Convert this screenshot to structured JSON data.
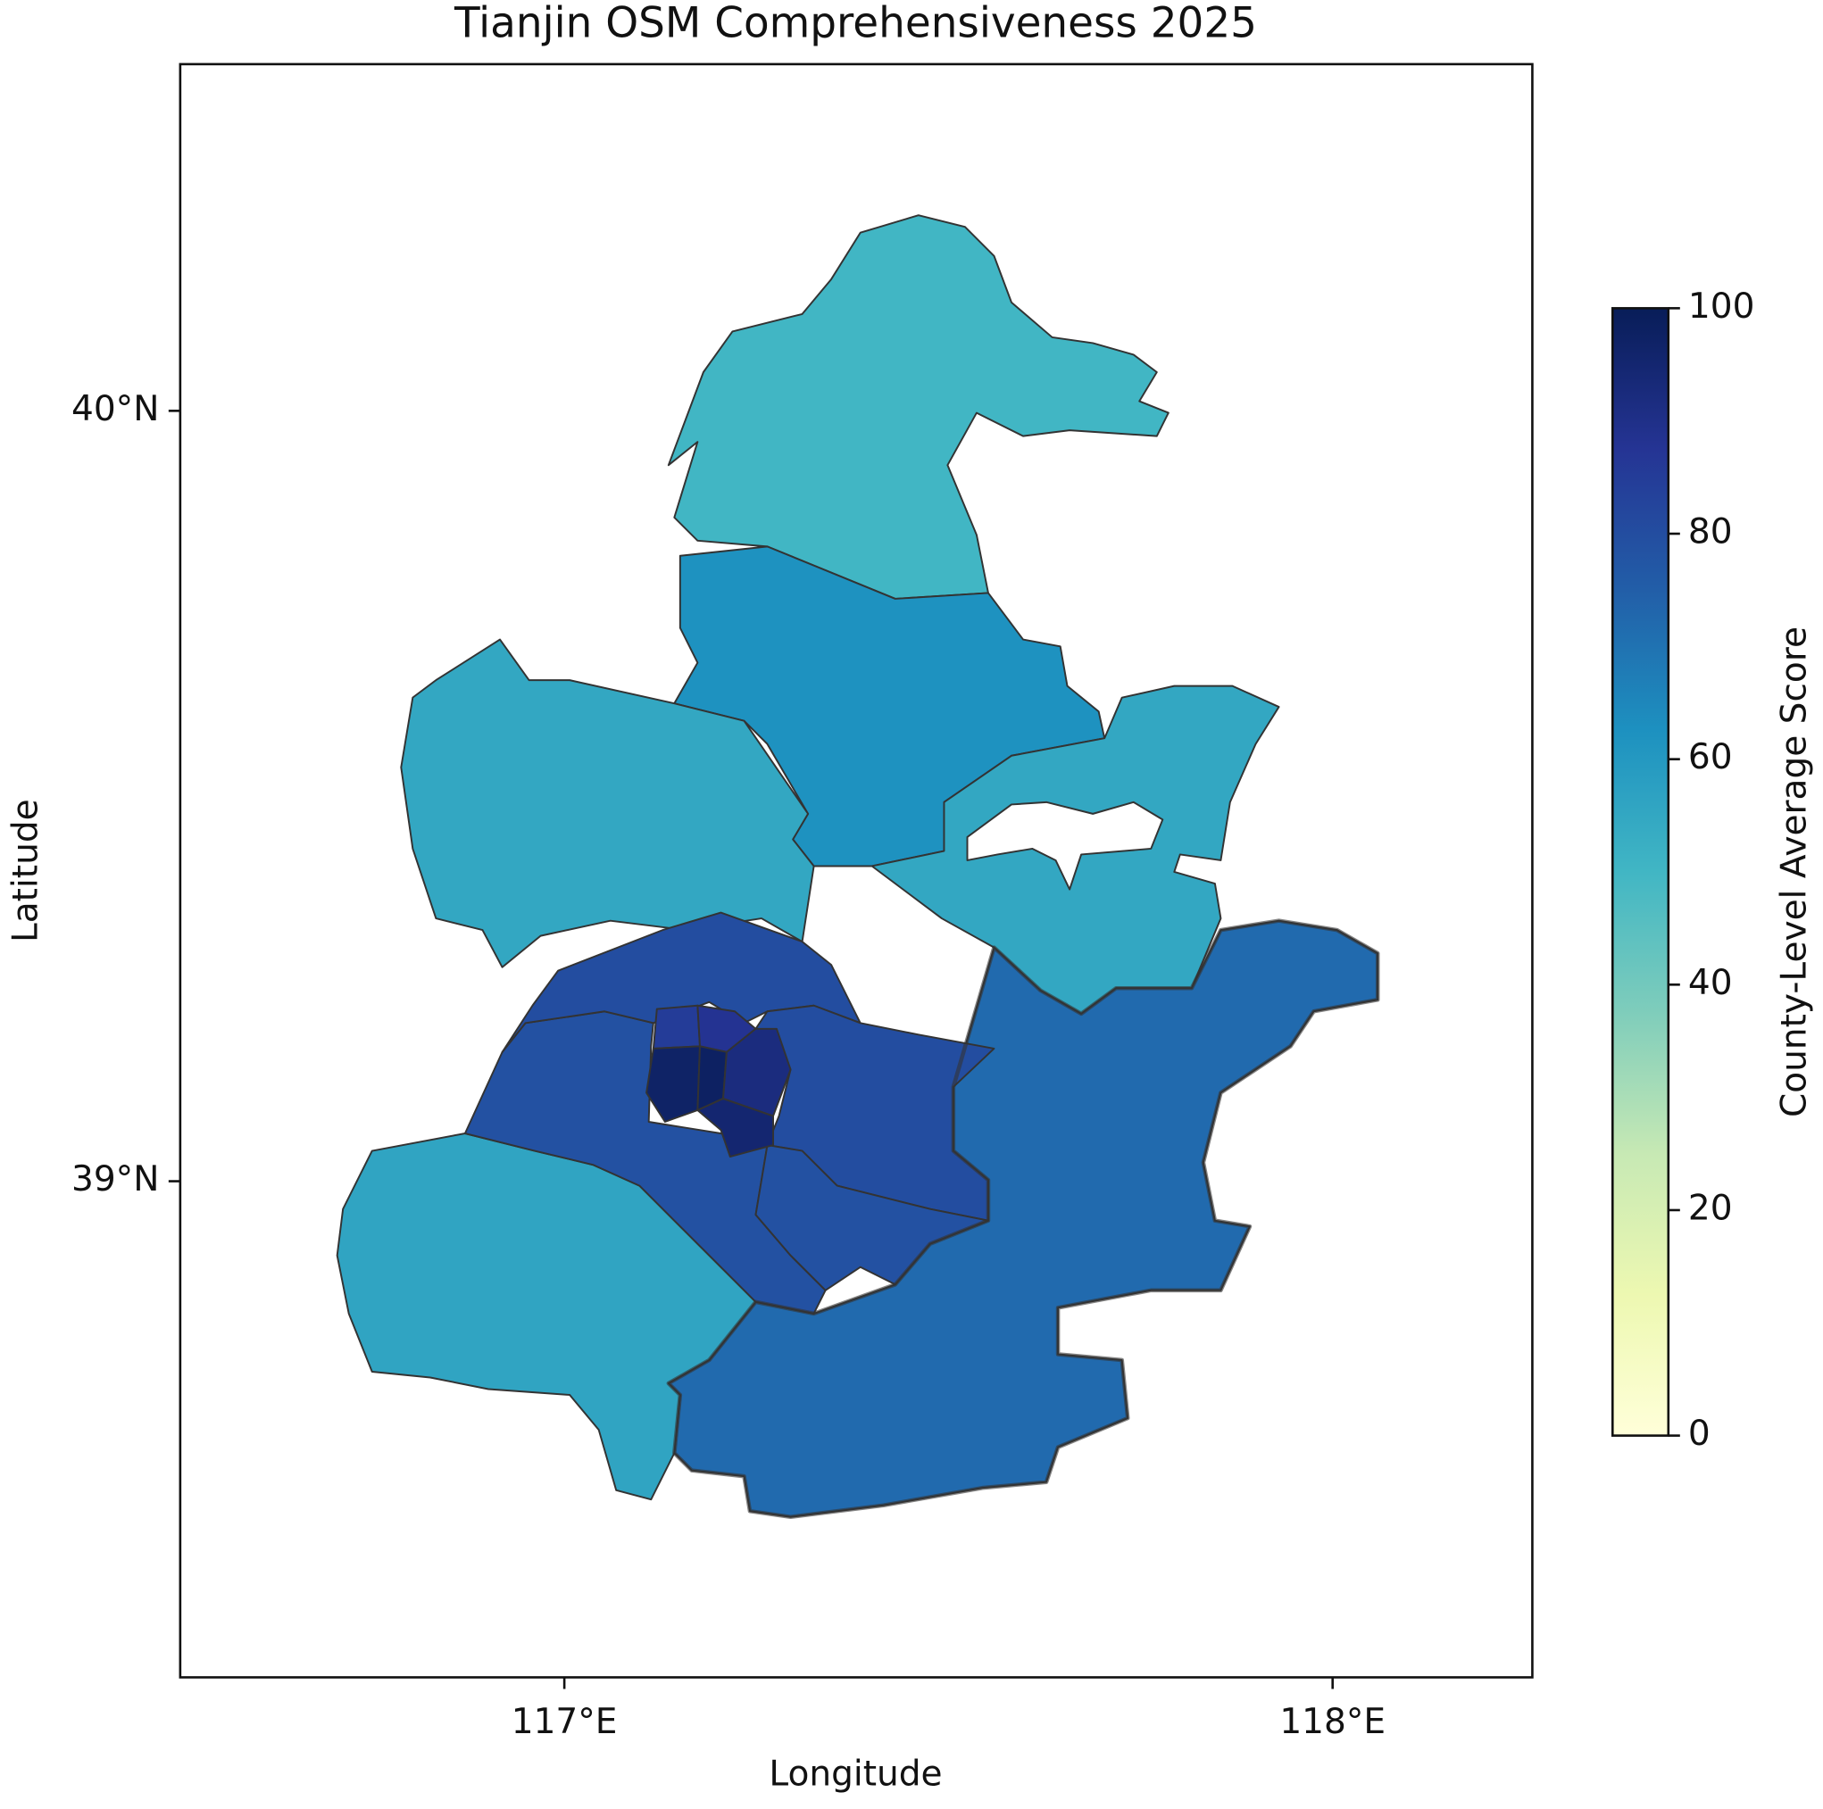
{
  "chart_data": {
    "type": "choropleth",
    "title": "Tianjin OSM Comprehensiveness 2025",
    "xlabel": "Longitude",
    "ylabel": "Latitude",
    "xlim": [
      116.5,
      118.26
    ],
    "ylim": [
      38.356,
      40.45
    ],
    "xticks": [
      {
        "value": 117,
        "label": "117°E"
      },
      {
        "value": 118,
        "label": "118°E"
      }
    ],
    "yticks": [
      {
        "value": 39,
        "label": "39°N"
      },
      {
        "value": 40,
        "label": "40°N"
      }
    ],
    "colormap": "YlGnBu",
    "clim": [
      0,
      100
    ],
    "cticks": [
      0,
      20,
      40,
      60,
      80,
      100
    ],
    "colorbar_label": "County-Level Average Score",
    "values": [
      50,
      62,
      55,
      55,
      72,
      56,
      79,
      80,
      80,
      79,
      85,
      88,
      97,
      98,
      95,
      92
    ]
  }
}
